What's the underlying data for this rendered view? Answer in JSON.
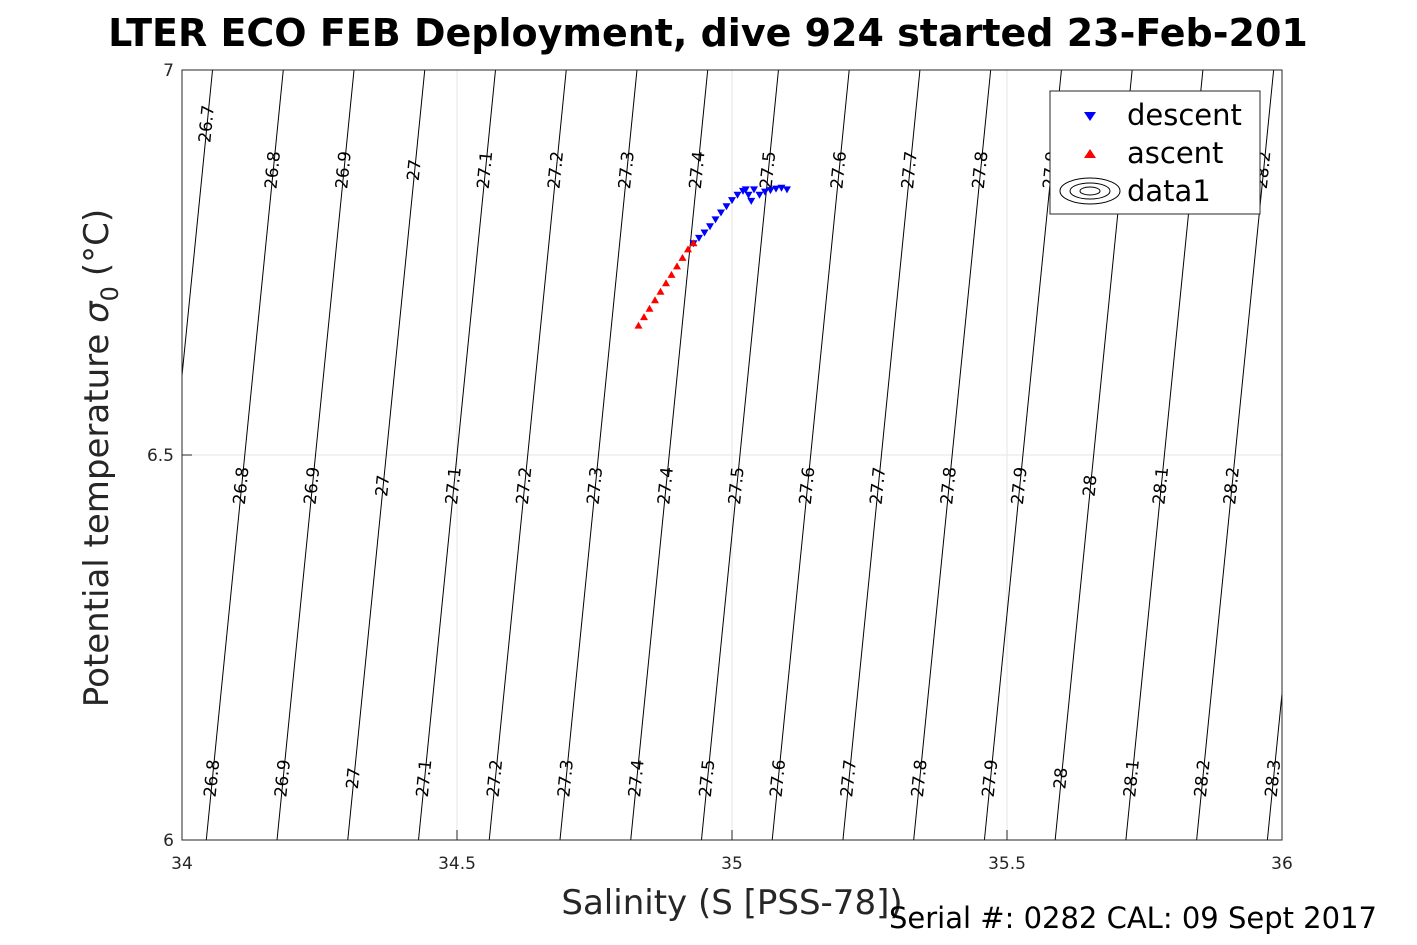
{
  "chart_data": {
    "type": "scatter",
    "title": "LTER ECO FEB Deployment, dive 924 started 23-Feb-201",
    "xlabel": "Salinity (S [PSS-78])",
    "ylabel": "Potential temperature",
    "ylabel_symbol": "σ",
    "ylabel_subscript": "0",
    "ylabel_unit": "(°C)",
    "xlim": [
      34,
      36
    ],
    "ylim": [
      6,
      7
    ],
    "x_ticks": [
      34,
      34.5,
      35,
      35.5,
      36
    ],
    "x_tick_labels": [
      "34",
      "34.5",
      "35",
      "35.5",
      "36"
    ],
    "y_ticks": [
      6,
      6.5,
      7
    ],
    "y_tick_labels": [
      "6",
      "6.5",
      "7"
    ],
    "grid": true,
    "legend": {
      "placement": "top-right",
      "entries": [
        {
          "label": "descent",
          "marker": "triangle-down",
          "color": "#0000ff"
        },
        {
          "label": "ascent",
          "marker": "triangle-up",
          "color": "#ff0000"
        },
        {
          "label": "data1",
          "marker": "contour",
          "color": "#000000"
        }
      ]
    },
    "series": [
      {
        "name": "descent",
        "color": "#0000ff",
        "marker": "triangle-down",
        "points": [
          [
            34.93,
            6.775
          ],
          [
            34.94,
            6.782
          ],
          [
            34.95,
            6.789
          ],
          [
            34.96,
            6.797
          ],
          [
            34.97,
            6.806
          ],
          [
            34.98,
            6.815
          ],
          [
            34.99,
            6.823
          ],
          [
            35.0,
            6.831
          ],
          [
            35.01,
            6.838
          ],
          [
            35.02,
            6.843
          ],
          [
            35.03,
            6.838
          ],
          [
            35.025,
            6.845
          ],
          [
            35.04,
            6.845
          ],
          [
            35.05,
            6.838
          ],
          [
            35.06,
            6.842
          ],
          [
            35.07,
            6.844
          ],
          [
            35.08,
            6.846
          ],
          [
            35.09,
            6.847
          ],
          [
            35.1,
            6.845
          ],
          [
            35.035,
            6.83
          ]
        ]
      },
      {
        "name": "ascent",
        "color": "#ff0000",
        "marker": "triangle-up",
        "points": [
          [
            34.83,
            6.668
          ],
          [
            34.84,
            6.679
          ],
          [
            34.85,
            6.69
          ],
          [
            34.86,
            6.701
          ],
          [
            34.87,
            6.712
          ],
          [
            34.88,
            6.723
          ],
          [
            34.89,
            6.734
          ],
          [
            34.9,
            6.745
          ],
          [
            34.91,
            6.756
          ],
          [
            34.92,
            6.767
          ],
          [
            34.93,
            6.775
          ]
        ]
      }
    ],
    "density_contours": {
      "levels": [
        "26.7",
        "26.8",
        "26.9",
        "27",
        "27.1",
        "27.2",
        "27.3",
        "27.4",
        "27.5",
        "27.6",
        "27.7",
        "27.8",
        "27.9",
        "28",
        "28.1",
        "28.2",
        "28.3"
      ],
      "label_rows": [
        {
          "y": 6.93,
          "labels": [
            "26.7"
          ]
        },
        {
          "y": 6.87,
          "labels": [
            "26.8",
            "26.9",
            "27",
            "27.1",
            "27.2",
            "27.3",
            "27.4",
            "27.5",
            "27.6",
            "27.7",
            "27.8",
            "27.9",
            "28.2"
          ]
        },
        {
          "y": 6.46,
          "labels": [
            "26.8",
            "26.9",
            "27",
            "27.1",
            "27.2",
            "27.3",
            "27.4",
            "27.5",
            "27.6",
            "27.7",
            "27.8",
            "27.9",
            "28",
            "28.1",
            "28.2"
          ]
        },
        {
          "y": 6.08,
          "labels": [
            "26.8",
            "26.9",
            "27",
            "27.1",
            "27.2",
            "27.3",
            "27.4",
            "27.5",
            "27.6",
            "27.7",
            "27.8",
            "27.9",
            "28",
            "28.1",
            "28.2",
            "28.3"
          ]
        }
      ]
    }
  },
  "footer": {
    "serial_text": "Serial #: 0282  CAL: 09 Sept 2017"
  }
}
